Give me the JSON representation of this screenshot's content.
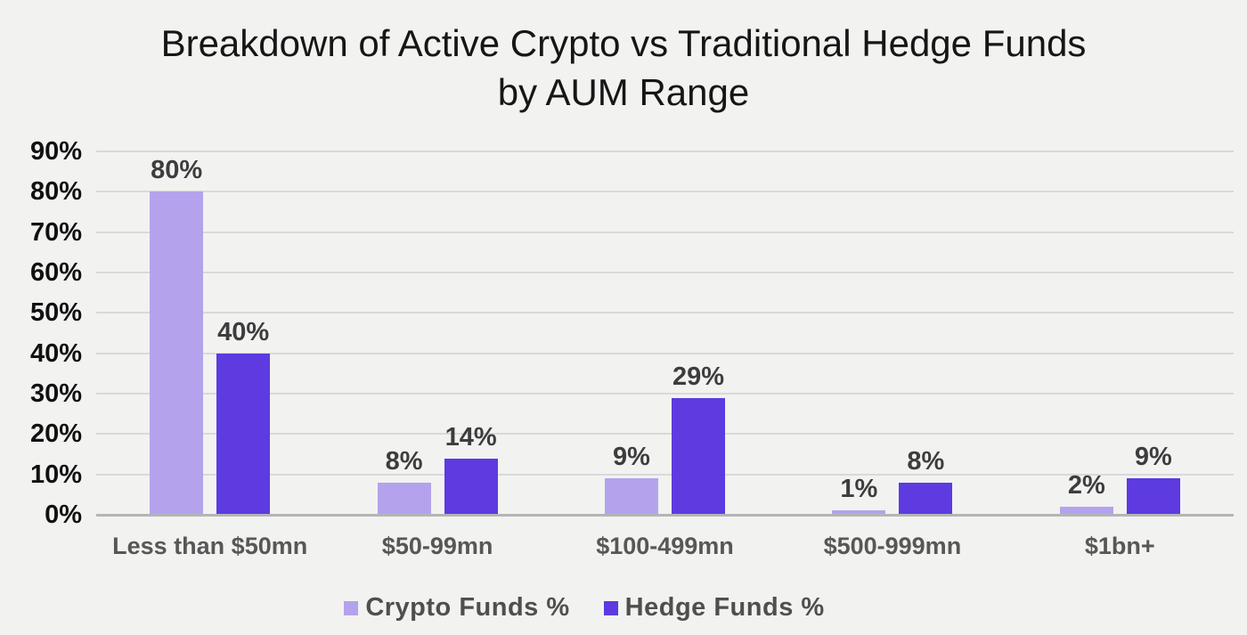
{
  "chart_data": {
    "type": "bar",
    "title": "Breakdown of Active Crypto vs Traditional Hedge Funds by AUM Range",
    "categories": [
      "Less than $50mn",
      "$50-99mn",
      "$100-499mn",
      "$500-999mn",
      "$1bn+"
    ],
    "series": [
      {
        "name": "Crypto Funds %",
        "color": "#b4a3ec",
        "values": [
          80,
          8,
          9,
          1,
          2
        ],
        "labels": [
          "80%",
          "8%",
          "9%",
          "1%",
          "2%"
        ]
      },
      {
        "name": "Hedge Funds %",
        "color": "#5d3be0",
        "values": [
          40,
          14,
          29,
          8,
          9
        ],
        "labels": [
          "40%",
          "14%",
          "29%",
          "8%",
          "9%"
        ]
      }
    ],
    "y_axis": {
      "tick_values": [
        0,
        10,
        20,
        30,
        40,
        50,
        60,
        70,
        80,
        90
      ],
      "tick_labels": [
        "0%",
        "10%",
        "20%",
        "30%",
        "40%",
        "50%",
        "60%",
        "70%",
        "80%",
        "90%"
      ],
      "min": 0,
      "max": 90
    },
    "ylim": [
      0,
      90
    ],
    "grid": true,
    "legend_position": "bottom"
  },
  "colors": {
    "background": "#f2f2f1",
    "gridline": "#d9d9d9",
    "axis_line": "#b5b5b5",
    "crypto_series": "#b4a3ec",
    "hedge_series": "#5d3be0",
    "title_text": "#161616",
    "tick_text": "#111111",
    "value_label_text": "#3d3d3d",
    "category_text": "#575757",
    "legend_text": "#4f4f4f"
  }
}
